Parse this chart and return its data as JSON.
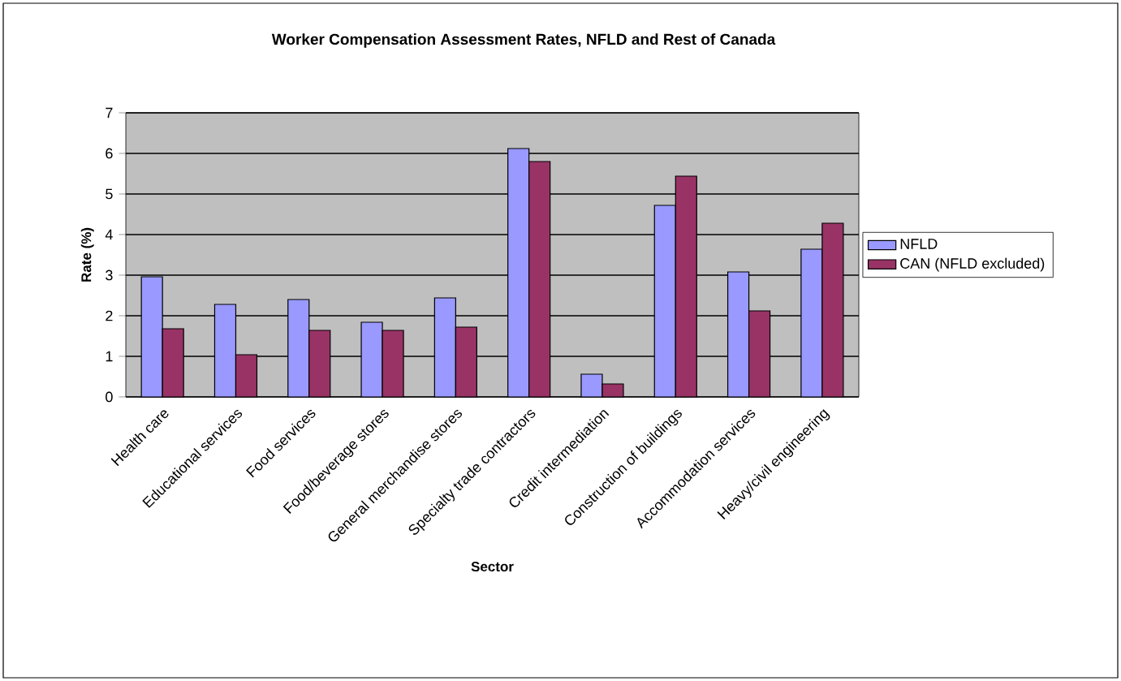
{
  "chart_data": {
    "type": "bar",
    "title": "Worker Compensation Assessment Rates, NFLD and Rest of Canada",
    "xlabel": "Sector",
    "ylabel": "Rate (%)",
    "categories": [
      "Health care",
      "Educational services",
      "Food services",
      "Food/beverage stores",
      "General merchandise stores",
      "Specialty trade contractors",
      "Credit intermediation",
      "Construction of buildings",
      "Accommodation services",
      "Heavy/civil engineering"
    ],
    "series": [
      {
        "name": "NFLD",
        "color": "#9999ff",
        "values": [
          2.96,
          2.28,
          2.4,
          1.84,
          2.44,
          6.12,
          0.56,
          4.72,
          3.08,
          3.64
        ]
      },
      {
        "name": "CAN (NFLD excluded)",
        "color": "#993366",
        "values": [
          1.68,
          1.04,
          1.64,
          1.64,
          1.72,
          5.8,
          0.32,
          5.44,
          2.12,
          4.28
        ]
      }
    ],
    "ylim": [
      0,
      7
    ],
    "yticks": [
      0,
      1,
      2,
      3,
      4,
      5,
      6,
      7
    ],
    "grid": "y",
    "legend": "right"
  }
}
